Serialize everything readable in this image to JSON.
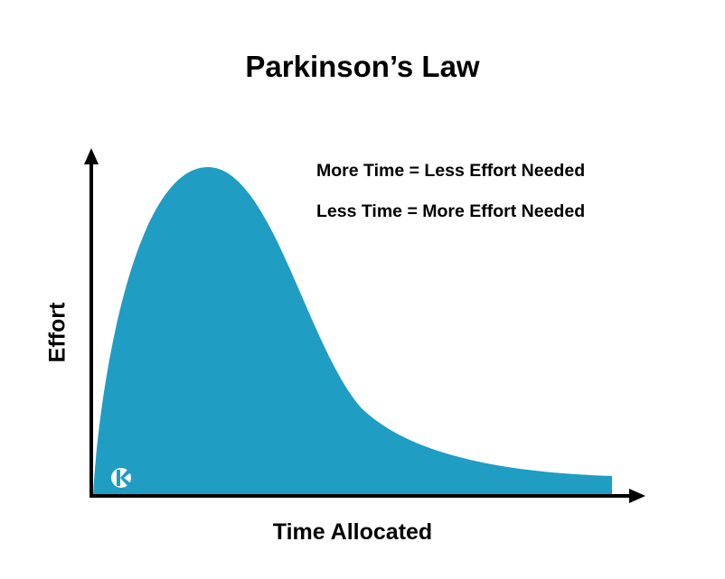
{
  "title": "Parkinson’s Law",
  "annotations": [
    "More Time = Less Effort Needed",
    "Less Time = More Effort Needed"
  ],
  "x_axis_label": "Time Allocated",
  "y_axis_label": "Effort",
  "colors": {
    "curve_fill": "#1f9dc3",
    "axes": "#000000",
    "logo": "#ffffff"
  },
  "logo_icon": "k-logo-icon"
}
